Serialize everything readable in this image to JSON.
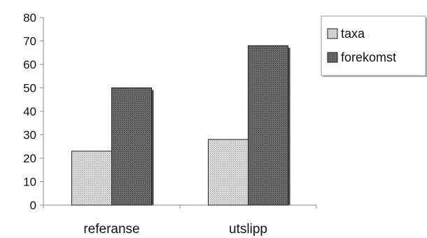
{
  "chart_data": {
    "type": "bar",
    "categories": [
      "referanse",
      "utslipp"
    ],
    "series": [
      {
        "name": "taxa",
        "values": [
          23,
          28
        ],
        "color": "#d6d6d6"
      },
      {
        "name": "forekomst",
        "values": [
          50,
          68
        ],
        "color": "#707070"
      }
    ],
    "ylim": [
      0,
      80
    ],
    "yticks": [
      0,
      10,
      20,
      30,
      40,
      50,
      60,
      70,
      80
    ],
    "grid": false,
    "legend": "top-right"
  }
}
